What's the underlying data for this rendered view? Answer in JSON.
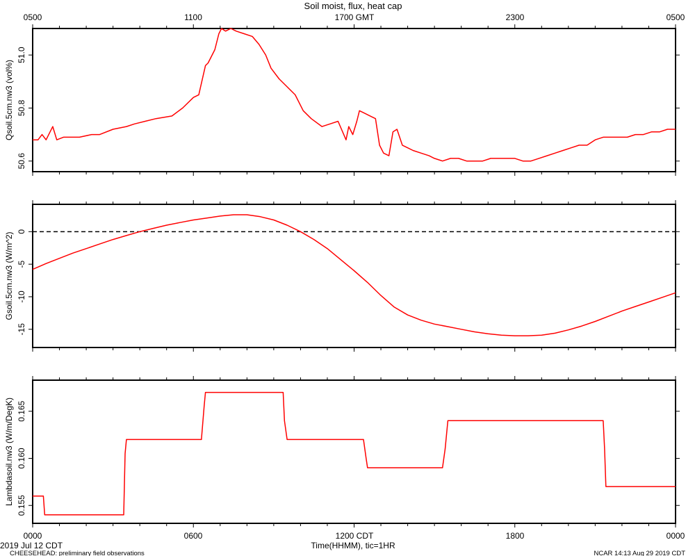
{
  "figure": {
    "title": "Soil moist, flux, heat cap",
    "top_axis_ticks": [
      "0500",
      "1100",
      "1700 GMT",
      "2300",
      "0500"
    ],
    "bottom_axis_ticks": [
      "0000",
      "0600",
      "1200 CDT",
      "1800",
      "0000"
    ],
    "xlabel": "Time(HHMM), tic=1HR",
    "date_label": "2019 Jul 12 CDT",
    "footer_left": "CHEESEHEAD: preliminary field observations",
    "footer_right": "NCAR 14:13 Aug 29 2019 CDT",
    "line_color": "#ff0000",
    "zero_line_color": "#000000"
  },
  "chart_data": [
    {
      "type": "line",
      "title": "Soil moist, flux, heat cap",
      "ylabel": "Qsoil.5cm.nw3 (vol%)",
      "xlabel": "",
      "xlim": [
        0,
        24
      ],
      "ylim": [
        50.56,
        51.1
      ],
      "yticks": [
        "50.6",
        "50.8",
        "51.0"
      ],
      "grid": false,
      "series": [
        {
          "color": "#ff0000",
          "x": [
            0.0,
            0.2,
            0.35,
            0.5,
            0.75,
            0.9,
            1.15,
            1.4,
            1.75,
            2.2,
            2.5,
            3.0,
            3.5,
            3.8,
            4.2,
            4.6,
            5.2,
            5.6,
            6.0,
            6.2,
            6.45,
            6.55,
            6.8,
            6.95,
            7.05,
            7.2,
            7.4,
            7.6,
            7.9,
            8.2,
            8.45,
            8.7,
            8.9,
            9.2,
            9.5,
            9.8,
            10.1,
            10.4,
            10.8,
            11.1,
            11.4,
            11.7,
            11.8,
            11.95,
            12.1,
            12.2,
            12.4,
            12.6,
            12.8,
            12.95,
            13.1,
            13.3,
            13.45,
            13.6,
            13.8,
            14.0,
            14.2,
            14.5,
            14.8,
            15.0,
            15.3,
            15.6,
            15.9,
            16.2,
            16.5,
            16.8,
            17.1,
            17.4,
            17.7,
            18.0,
            18.3,
            18.6,
            18.9,
            19.2,
            19.5,
            19.8,
            20.1,
            20.4,
            20.7,
            21.0,
            21.3,
            21.6,
            21.9,
            22.2,
            22.5,
            22.8,
            23.1,
            23.4,
            23.7,
            24.0
          ],
          "y": [
            50.68,
            50.68,
            50.7,
            50.68,
            50.73,
            50.68,
            50.69,
            50.69,
            50.69,
            50.7,
            50.7,
            50.72,
            50.73,
            50.74,
            50.75,
            50.76,
            50.77,
            50.8,
            50.84,
            50.85,
            50.96,
            50.97,
            51.02,
            51.08,
            51.1,
            51.09,
            51.1,
            51.09,
            51.08,
            51.07,
            51.04,
            51.0,
            50.95,
            50.91,
            50.88,
            50.85,
            50.79,
            50.76,
            50.73,
            50.74,
            50.75,
            50.68,
            50.73,
            50.7,
            50.75,
            50.79,
            50.78,
            50.77,
            50.76,
            50.66,
            50.63,
            50.62,
            50.71,
            50.72,
            50.66,
            50.65,
            50.64,
            50.63,
            50.62,
            50.61,
            50.6,
            50.61,
            50.61,
            50.6,
            50.6,
            50.6,
            50.61,
            50.61,
            50.61,
            50.61,
            50.6,
            50.6,
            50.61,
            50.62,
            50.63,
            50.64,
            50.65,
            50.66,
            50.66,
            50.68,
            50.69,
            50.69,
            50.69,
            50.69,
            50.7,
            50.7,
            50.71,
            50.71,
            50.72,
            50.72
          ]
        }
      ]
    },
    {
      "type": "line",
      "ylabel": "Gsoil.5cm.nw3 (W/m^2)",
      "xlabel": "",
      "xlim": [
        0,
        24
      ],
      "ylim": [
        -17.8,
        4.2
      ],
      "yticks": [
        "-15",
        "-10",
        "-5",
        "0"
      ],
      "grid": false,
      "reference_line": {
        "y": 0,
        "style": "dashed"
      },
      "series": [
        {
          "color": "#ff0000",
          "x": [
            0.0,
            0.5,
            1.0,
            1.5,
            2.0,
            2.5,
            3.0,
            3.5,
            4.0,
            4.5,
            5.0,
            5.5,
            6.0,
            6.5,
            7.0,
            7.5,
            8.0,
            8.5,
            9.0,
            9.5,
            10.0,
            10.5,
            11.0,
            11.5,
            12.0,
            12.5,
            13.0,
            13.5,
            14.0,
            14.5,
            15.0,
            15.5,
            16.0,
            16.5,
            17.0,
            17.5,
            18.0,
            18.5,
            19.0,
            19.5,
            20.0,
            20.5,
            21.0,
            21.5,
            22.0,
            22.5,
            23.0,
            23.5,
            24.0
          ],
          "y": [
            -5.8,
            -4.9,
            -4.1,
            -3.3,
            -2.6,
            -1.9,
            -1.2,
            -0.6,
            0.0,
            0.5,
            1.0,
            1.4,
            1.8,
            2.1,
            2.4,
            2.6,
            2.6,
            2.3,
            1.8,
            1.0,
            0.0,
            -1.2,
            -2.6,
            -4.3,
            -6.0,
            -7.8,
            -9.8,
            -11.6,
            -12.8,
            -13.6,
            -14.2,
            -14.6,
            -15.0,
            -15.4,
            -15.7,
            -15.9,
            -16.0,
            -16.0,
            -15.9,
            -15.6,
            -15.1,
            -14.5,
            -13.8,
            -13.0,
            -12.2,
            -11.5,
            -10.8,
            -10.1,
            -9.4
          ]
        }
      ]
    },
    {
      "type": "line",
      "ylabel": "Lambdasoil.nw3 (W/m/DegK)",
      "xlabel": "Time(HHMM), tic=1HR",
      "xlim": [
        0,
        24
      ],
      "ylim": [
        0.1531,
        0.1683
      ],
      "yticks": [
        "0.155",
        "0.160",
        "0.165"
      ],
      "grid": false,
      "series": [
        {
          "color": "#ff0000",
          "x": [
            0.0,
            0.4,
            0.45,
            3.4,
            3.45,
            3.5,
            6.3,
            6.4,
            6.45,
            9.35,
            9.4,
            9.5,
            12.35,
            12.45,
            12.5,
            15.3,
            15.4,
            15.5,
            21.3,
            21.35,
            21.4,
            24.0
          ],
          "y": [
            0.156,
            0.156,
            0.154,
            0.154,
            0.1605,
            0.162,
            0.162,
            0.1655,
            0.167,
            0.167,
            0.164,
            0.162,
            0.162,
            0.16,
            0.159,
            0.159,
            0.161,
            0.164,
            0.164,
            0.161,
            0.157,
            0.157
          ]
        }
      ]
    }
  ]
}
